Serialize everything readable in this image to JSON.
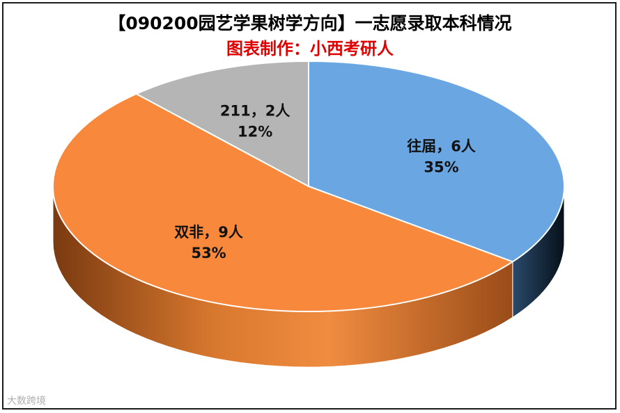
{
  "chart_data": {
    "type": "pie",
    "style": "3d",
    "title": "【090200园艺学果树学方向】一志愿录取本科情况",
    "subtitle": "图表制作：小西考研人",
    "slices": [
      {
        "name": "往届",
        "count_label": "6人",
        "value": 6,
        "percent": "35%",
        "color": "#6aa7e2",
        "side_color": "#12202f"
      },
      {
        "name": "双非",
        "count_label": "9人",
        "value": 9,
        "percent": "53%",
        "color": "#f8893c",
        "side_color": "#b85f20"
      },
      {
        "name": "211",
        "count_label": "2人",
        "value": 2,
        "percent": "12%",
        "color": "#b5b5b5",
        "side_color": "#6d6d6d"
      }
    ],
    "label_separator": "，",
    "legend": "none"
  },
  "colors": {
    "subtitle": "#e00000",
    "border": "#1a1a1a",
    "slice_outline": "#ffffff"
  },
  "watermark": "大数跨境"
}
